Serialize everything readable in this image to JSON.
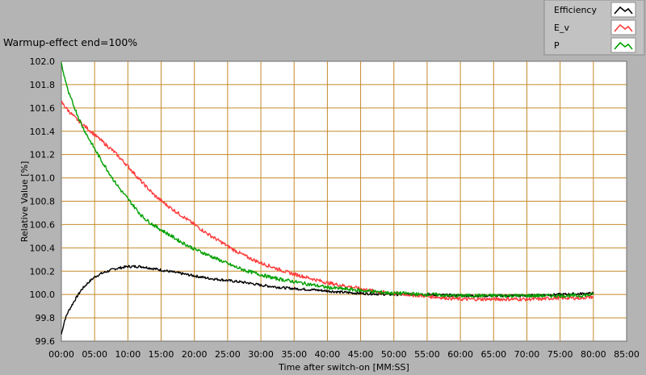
{
  "chart_data": {
    "type": "line",
    "title": "Warmup-effect end=100%",
    "xlabel": "Time after switch-on [MM:SS]",
    "ylabel": "Relative Value [%]",
    "xlim": [
      0,
      85
    ],
    "ylim": [
      99.6,
      102.0
    ],
    "x_tick_labels": [
      "00:00",
      "05:00",
      "10:00",
      "15:00",
      "20:00",
      "25:00",
      "30:00",
      "35:00",
      "40:00",
      "45:00",
      "50:00",
      "55:00",
      "60:00",
      "65:00",
      "70:00",
      "75:00",
      "80:00",
      "85:00"
    ],
    "y_tick_labels": [
      "99.6",
      "99.8",
      "100.0",
      "100.2",
      "100.4",
      "100.6",
      "100.8",
      "101.0",
      "101.2",
      "101.4",
      "101.6",
      "101.8",
      "102.0"
    ],
    "grid": true,
    "legend_position": "top-right",
    "series": [
      {
        "name": "Efficiency",
        "color": "#000000",
        "x": [
          0,
          0.5,
          1,
          2,
          3,
          4,
          5,
          6,
          7,
          8,
          9,
          10,
          11,
          12,
          13,
          14,
          15,
          17,
          20,
          22,
          25,
          28,
          30,
          33,
          35,
          38,
          40,
          42,
          45,
          50,
          55,
          60,
          65,
          70,
          75,
          80
        ],
        "y": [
          99.66,
          99.78,
          99.85,
          99.95,
          100.04,
          100.1,
          100.15,
          100.18,
          100.2,
          100.22,
          100.23,
          100.24,
          100.24,
          100.24,
          100.23,
          100.22,
          100.21,
          100.19,
          100.16,
          100.14,
          100.12,
          100.1,
          100.08,
          100.06,
          100.05,
          100.04,
          100.03,
          100.02,
          100.01,
          100.0,
          100.0,
          99.99,
          99.99,
          99.99,
          100.0,
          100.01
        ]
      },
      {
        "name": "E_v",
        "color": "#ff3c3c",
        "x": [
          0,
          1,
          2,
          3,
          4,
          5,
          6,
          7,
          8,
          9,
          10,
          12,
          14,
          16,
          18,
          20,
          22,
          24,
          26,
          28,
          30,
          32,
          34,
          36,
          38,
          40,
          42,
          44,
          46,
          48,
          50,
          52,
          54,
          56,
          58,
          60,
          62,
          64,
          66,
          68,
          70,
          72,
          74,
          76,
          78,
          80
        ],
        "y": [
          101.65,
          101.58,
          101.52,
          101.47,
          101.42,
          101.37,
          101.32,
          101.27,
          101.22,
          101.16,
          101.1,
          100.97,
          100.85,
          100.76,
          100.68,
          100.6,
          100.52,
          100.45,
          100.38,
          100.32,
          100.27,
          100.23,
          100.19,
          100.16,
          100.13,
          100.1,
          100.08,
          100.06,
          100.04,
          100.02,
          100.01,
          100.0,
          99.99,
          99.98,
          99.97,
          99.96,
          99.96,
          99.96,
          99.96,
          99.96,
          99.96,
          99.96,
          99.97,
          99.97,
          99.97,
          99.98
        ]
      },
      {
        "name": "P",
        "color": "#00a000",
        "x": [
          0,
          0.3,
          0.7,
          1,
          2,
          3,
          4,
          5,
          6,
          7,
          8,
          9,
          10,
          11,
          12,
          13,
          14,
          16,
          18,
          20,
          22,
          24,
          26,
          28,
          30,
          32,
          34,
          36,
          38,
          40,
          42,
          44,
          46,
          48,
          50,
          52,
          54,
          56,
          58,
          60,
          62,
          64,
          66,
          68,
          70,
          72,
          74,
          76,
          78,
          80
        ],
        "y": [
          101.98,
          101.9,
          101.82,
          101.74,
          101.6,
          101.46,
          101.35,
          101.25,
          101.15,
          101.06,
          100.97,
          100.89,
          100.82,
          100.75,
          100.68,
          100.63,
          100.59,
          100.52,
          100.45,
          100.39,
          100.34,
          100.29,
          100.24,
          100.2,
          100.17,
          100.14,
          100.12,
          100.1,
          100.08,
          100.06,
          100.05,
          100.04,
          100.03,
          100.02,
          100.01,
          100.01,
          100.0,
          100.0,
          99.99,
          99.99,
          99.99,
          99.99,
          99.99,
          99.99,
          99.99,
          99.99,
          99.99,
          99.99,
          99.99,
          100.0
        ]
      }
    ]
  }
}
